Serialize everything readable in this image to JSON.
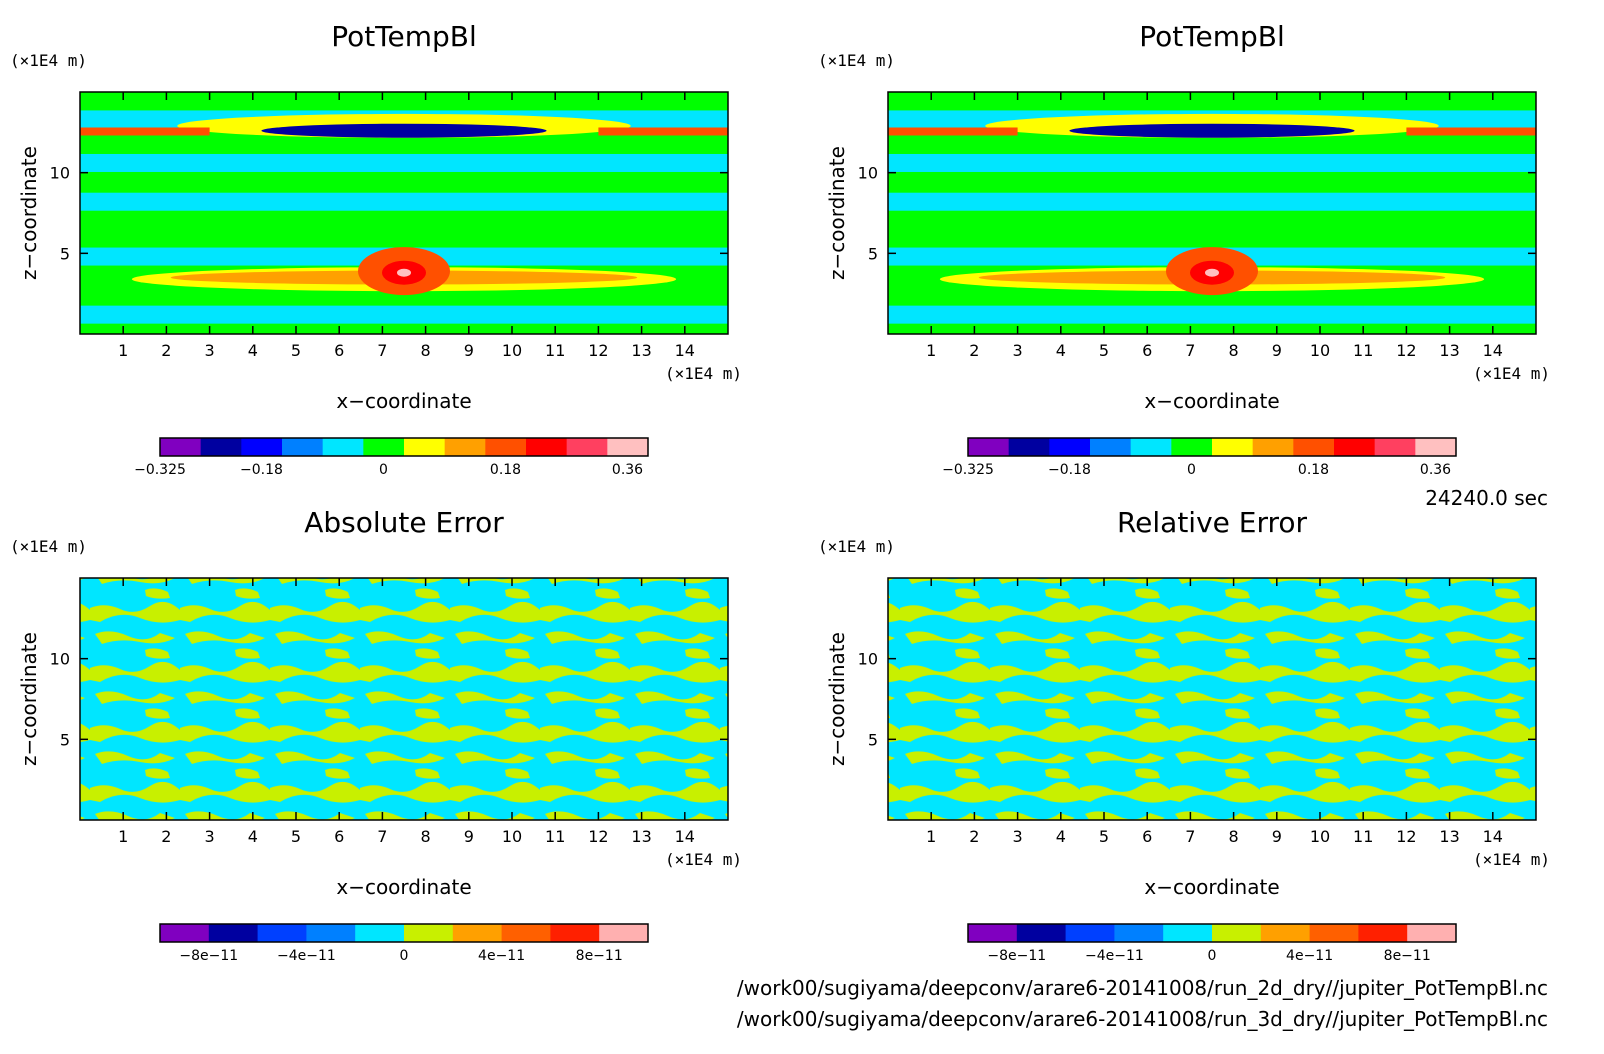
{
  "time_label": "24240.0 sec",
  "paths": [
    "/work00/sugiyama/deepconv/arare6-20141008/run_2d_dry//jupiter_PotTempBl.nc",
    "/work00/sugiyama/deepconv/arare6-20141008/run_3d_dry//jupiter_PotTempBl.nc"
  ],
  "chart_data": [
    {
      "type": "heatmap",
      "title": "PotTempBl",
      "xlabel": "x−coordinate",
      "ylabel": "z−coordinate",
      "x_unit": "(×1E4 m)",
      "y_unit": "(×1E4 m)",
      "x_ticks": [
        "1",
        "2",
        "3",
        "4",
        "5",
        "6",
        "7",
        "8",
        "9",
        "10",
        "11",
        "12",
        "13",
        "14"
      ],
      "y_ticks": [
        "5",
        "10"
      ],
      "xlim": [
        0,
        15
      ],
      "ylim": [
        0,
        15
      ],
      "colorbar": {
        "colors": [
          "#8000c0",
          "#0000a0",
          "#0000ff",
          "#0080ff",
          "#00e6ff",
          "#00ff00",
          "#ffff00",
          "#ffa000",
          "#ff5000",
          "#ff0000",
          "#ff4060",
          "#ffc0c0"
        ],
        "tick_labels": [
          "−0.325",
          "−0.18",
          "0",
          "0.18",
          "0.36"
        ]
      }
    },
    {
      "type": "heatmap",
      "title": "PotTempBl",
      "xlabel": "x−coordinate",
      "ylabel": "z−coordinate",
      "x_unit": "(×1E4 m)",
      "y_unit": "(×1E4 m)",
      "x_ticks": [
        "1",
        "2",
        "3",
        "4",
        "5",
        "6",
        "7",
        "8",
        "9",
        "10",
        "11",
        "12",
        "13",
        "14"
      ],
      "y_ticks": [
        "5",
        "10"
      ],
      "xlim": [
        0,
        15
      ],
      "ylim": [
        0,
        15
      ],
      "colorbar": {
        "colors": [
          "#8000c0",
          "#0000a0",
          "#0000ff",
          "#0080ff",
          "#00e6ff",
          "#00ff00",
          "#ffff00",
          "#ffa000",
          "#ff5000",
          "#ff0000",
          "#ff4060",
          "#ffc0c0"
        ],
        "tick_labels": [
          "−0.325",
          "−0.18",
          "0",
          "0.18",
          "0.36"
        ]
      }
    },
    {
      "type": "heatmap",
      "title": "Absolute Error",
      "xlabel": "x−coordinate",
      "ylabel": "z−coordinate",
      "x_unit": "(×1E4 m)",
      "y_unit": "(×1E4 m)",
      "x_ticks": [
        "1",
        "2",
        "3",
        "4",
        "5",
        "6",
        "7",
        "8",
        "9",
        "10",
        "11",
        "12",
        "13",
        "14"
      ],
      "y_ticks": [
        "5",
        "10"
      ],
      "xlim": [
        0,
        15
      ],
      "ylim": [
        0,
        15
      ],
      "colorbar": {
        "colors": [
          "#8000c0",
          "#0000a0",
          "#0040ff",
          "#0080ff",
          "#00e6ff",
          "#c8f000",
          "#ffa000",
          "#ff6000",
          "#ff2000",
          "#ffb0b0"
        ],
        "tick_labels": [
          "−8e−11",
          "−4e−11",
          "0",
          "4e−11",
          "8e−11"
        ]
      }
    },
    {
      "type": "heatmap",
      "title": "Relative Error",
      "xlabel": "x−coordinate",
      "ylabel": "z−coordinate",
      "x_unit": "(×1E4 m)",
      "y_unit": "(×1E4 m)",
      "x_ticks": [
        "1",
        "2",
        "3",
        "4",
        "5",
        "6",
        "7",
        "8",
        "9",
        "10",
        "11",
        "12",
        "13",
        "14"
      ],
      "y_ticks": [
        "5",
        "10"
      ],
      "xlim": [
        0,
        15
      ],
      "ylim": [
        0,
        15
      ],
      "colorbar": {
        "colors": [
          "#8000c0",
          "#0000a0",
          "#0040ff",
          "#0080ff",
          "#00e6ff",
          "#c8f000",
          "#ffa000",
          "#ff6000",
          "#ff2000",
          "#ffb0b0"
        ],
        "tick_labels": [
          "−8e−11",
          "−4e−11",
          "0",
          "4e−11",
          "8e−11"
        ]
      }
    }
  ]
}
